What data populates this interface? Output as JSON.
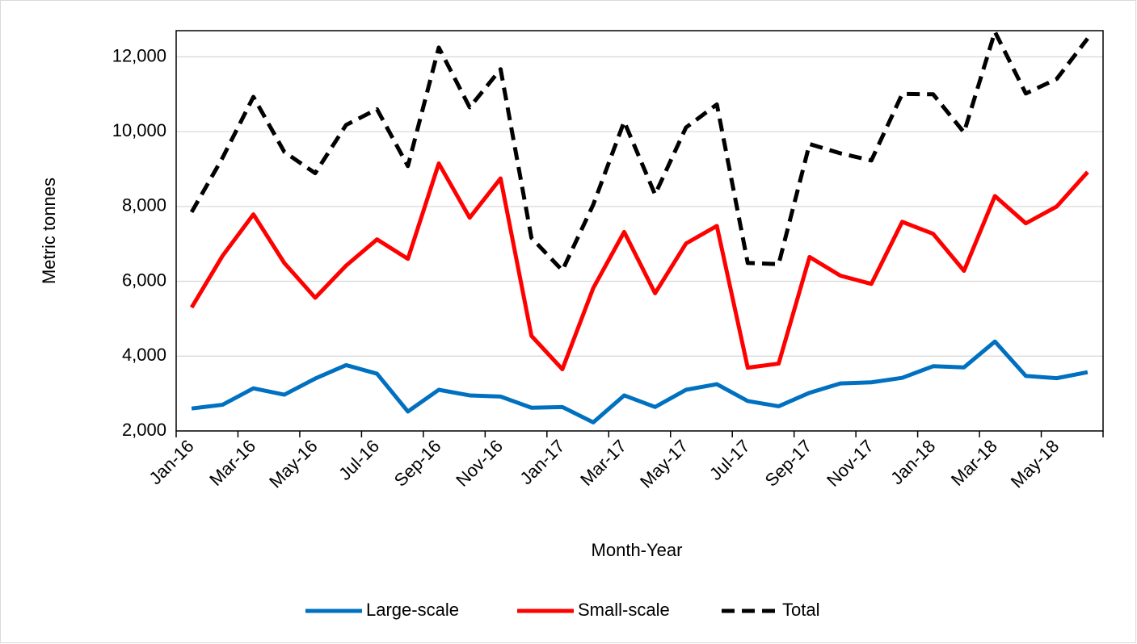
{
  "chart_data": {
    "type": "line",
    "x_label": "Month-Year",
    "y_label": "Metric tonnes",
    "categories": [
      "Jan-16",
      null,
      "Mar-16",
      null,
      "May-16",
      null,
      "Jul-16",
      null,
      "Sep-16",
      null,
      "Nov-16",
      null,
      "Jan-17",
      null,
      "Mar-17",
      null,
      "May-17",
      null,
      "Jul-17",
      null,
      "Sep-17",
      null,
      "Nov-17",
      null,
      "Jan-18",
      null,
      "Mar-18",
      null,
      "May-18",
      null
    ],
    "series": [
      {
        "name": "Large-scale",
        "color": "#0070c0",
        "dash": "solid",
        "values": [
          2600,
          2700,
          3140,
          2970,
          3400,
          3760,
          3530,
          2520,
          3100,
          2950,
          2920,
          2620,
          2640,
          2230,
          2950,
          2640,
          3100,
          3250,
          2800,
          2660,
          3020,
          3270,
          3300,
          3420,
          3730,
          3700,
          4390,
          3470,
          3410,
          3570
        ]
      },
      {
        "name": "Small-scale",
        "color": "#ff0000",
        "dash": "solid",
        "values": [
          5300,
          6680,
          7790,
          6490,
          5560,
          6420,
          7120,
          6600,
          9150,
          7700,
          8750,
          4540,
          3650,
          5820,
          7320,
          5680,
          7010,
          7480,
          3690,
          3800,
          6650,
          6150,
          5930,
          7590,
          7270,
          6280,
          8280,
          7550,
          8000,
          8920
        ]
      },
      {
        "name": "Total",
        "color": "#000000",
        "dash": "dashed",
        "values": [
          7850,
          9300,
          10930,
          9460,
          8890,
          10180,
          10600,
          9080,
          12250,
          10650,
          11670,
          7160,
          6290,
          8050,
          10270,
          8320,
          10110,
          10730,
          6490,
          6460,
          9670,
          9420,
          9230,
          11010,
          11000,
          9980,
          12670,
          11020,
          11410,
          12490
        ]
      }
    ],
    "ylim": [
      2000,
      12700
    ],
    "yticks": [
      {
        "value": 2000,
        "label": "2,000"
      },
      {
        "value": 4000,
        "label": "4,000"
      },
      {
        "value": 6000,
        "label": "6,000"
      },
      {
        "value": 8000,
        "label": "8,000"
      },
      {
        "value": 10000,
        "label": "10,000"
      },
      {
        "value": 12000,
        "label": "12,000"
      }
    ],
    "grid": true,
    "legend": "bottom"
  }
}
